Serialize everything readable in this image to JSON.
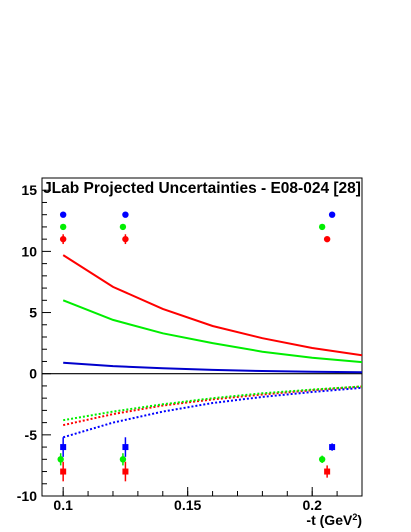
{
  "chart_data": {
    "type": "scatter",
    "title": "JLab Projected Uncertainties - E08-024 [28]",
    "xlabel": {
      "main": "-t (GeV",
      "sup": "2",
      "end": ")"
    },
    "ylabel": "",
    "xlim": [
      0.0915,
      0.22
    ],
    "ylim": [
      -10,
      16
    ],
    "x_ticks": [
      0.1,
      0.15,
      0.2
    ],
    "x_tick_labels": [
      "0.1",
      "0.15",
      "0.2"
    ],
    "y_ticks": [
      -10,
      -5,
      0,
      5,
      10,
      15
    ],
    "y_tick_labels": [
      "-10",
      "-5",
      "0",
      "5",
      "10",
      "15"
    ],
    "zero_line": true,
    "grid": false,
    "legend": "none",
    "curves": [
      {
        "color": "#ff0000",
        "style": "solid",
        "x": [
          0.1,
          0.12,
          0.14,
          0.16,
          0.18,
          0.2,
          0.22
        ],
        "y": [
          9.7,
          7.1,
          5.3,
          3.9,
          2.9,
          2.1,
          1.5
        ]
      },
      {
        "color": "#00ee00",
        "style": "solid",
        "x": [
          0.1,
          0.12,
          0.14,
          0.16,
          0.18,
          0.2,
          0.22
        ],
        "y": [
          6.0,
          4.4,
          3.3,
          2.5,
          1.8,
          1.3,
          0.95
        ]
      },
      {
        "color": "#0000cc",
        "style": "solid",
        "x": [
          0.1,
          0.12,
          0.14,
          0.16,
          0.18,
          0.2,
          0.22
        ],
        "y": [
          0.9,
          0.62,
          0.44,
          0.31,
          0.22,
          0.16,
          0.12
        ]
      },
      {
        "color": "#ff0000",
        "style": "dotted",
        "x": [
          0.1,
          0.12,
          0.14,
          0.16,
          0.18,
          0.2,
          0.22
        ],
        "y": [
          -4.2,
          -3.3,
          -2.6,
          -2.1,
          -1.7,
          -1.35,
          -1.05
        ]
      },
      {
        "color": "#00ee00",
        "style": "dotted",
        "x": [
          0.1,
          0.12,
          0.14,
          0.16,
          0.18,
          0.2,
          0.22
        ],
        "y": [
          -3.8,
          -3.1,
          -2.5,
          -2.0,
          -1.6,
          -1.3,
          -1.05
        ]
      },
      {
        "color": "#0000ff",
        "style": "dotted",
        "x": [
          0.1,
          0.12,
          0.14,
          0.16,
          0.18,
          0.2,
          0.22
        ],
        "y": [
          -5.2,
          -4.0,
          -3.1,
          -2.4,
          -1.9,
          -1.5,
          -1.15
        ]
      }
    ],
    "points": [
      {
        "color": "#0000ff",
        "marker": "circle",
        "x": 0.1,
        "y": 13.0,
        "err": 0.2
      },
      {
        "color": "#00ee00",
        "marker": "circle",
        "x": 0.1,
        "y": 12.0,
        "err": 0.2
      },
      {
        "color": "#ff0000",
        "marker": "circle",
        "x": 0.1,
        "y": 11.0,
        "err": 0.4
      },
      {
        "color": "#0000ff",
        "marker": "circle",
        "x": 0.125,
        "y": 13.0,
        "err": 0.2
      },
      {
        "color": "#00ee00",
        "marker": "circle",
        "x": 0.124,
        "y": 12.0,
        "err": 0.2
      },
      {
        "color": "#ff0000",
        "marker": "circle",
        "x": 0.125,
        "y": 11.0,
        "err": 0.4
      },
      {
        "color": "#0000ff",
        "marker": "circle",
        "x": 0.208,
        "y": 13.0,
        "err": 0.2
      },
      {
        "color": "#00ee00",
        "marker": "circle",
        "x": 0.204,
        "y": 12.0,
        "err": 0.2
      },
      {
        "color": "#ff0000",
        "marker": "circle",
        "x": 0.206,
        "y": 11.0,
        "err": 0.2
      },
      {
        "color": "#0000ff",
        "marker": "square",
        "x": 0.1,
        "y": -6.0,
        "err": 0.8
      },
      {
        "color": "#00ee00",
        "marker": "circle",
        "x": 0.099,
        "y": -7.0,
        "err": 0.5
      },
      {
        "color": "#ff0000",
        "marker": "square",
        "x": 0.1,
        "y": -8.0,
        "err": 0.8
      },
      {
        "color": "#0000ff",
        "marker": "square",
        "x": 0.125,
        "y": -6.0,
        "err": 0.8
      },
      {
        "color": "#00ee00",
        "marker": "circle",
        "x": 0.124,
        "y": -7.0,
        "err": 0.5
      },
      {
        "color": "#ff0000",
        "marker": "square",
        "x": 0.125,
        "y": -8.0,
        "err": 0.8
      },
      {
        "color": "#0000ff",
        "marker": "square",
        "x": 0.208,
        "y": -6.0,
        "err": 0.3
      },
      {
        "color": "#00ee00",
        "marker": "circle",
        "x": 0.204,
        "y": -7.0,
        "err": 0.3
      },
      {
        "color": "#ff0000",
        "marker": "square",
        "x": 0.206,
        "y": -8.0,
        "err": 0.5
      }
    ]
  }
}
